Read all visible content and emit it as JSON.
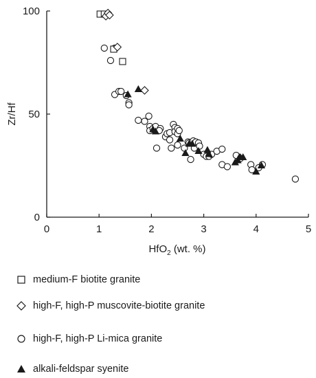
{
  "chart_data": {
    "type": "scatter",
    "title": "",
    "xlabel_main": "HfO",
    "xlabel_sub": "2",
    "xlabel_tail": " (wt. %)",
    "ylabel": "Zr/Hf",
    "xlim": [
      0,
      5
    ],
    "ylim": [
      0,
      100
    ],
    "xticks": [
      "0",
      "1",
      "2",
      "3",
      "4",
      "5"
    ],
    "yticks": [
      "0",
      "50",
      "100"
    ],
    "grid": false,
    "legend_position": "below",
    "series": [
      {
        "name": "medium-F biotite granite",
        "marker": "square-open",
        "points": [
          [
            1.02,
            98.5
          ],
          [
            1.1,
            98.5
          ],
          [
            1.28,
            81.5
          ],
          [
            1.45,
            75.5
          ]
        ]
      },
      {
        "name": "high-F, high-P muscovite-biotite granite",
        "marker": "diamond-open",
        "points": [
          [
            1.13,
            97.5
          ],
          [
            1.17,
            99
          ],
          [
            1.2,
            98
          ],
          [
            1.35,
            82.5
          ],
          [
            1.87,
            61.5
          ]
        ]
      },
      {
        "name": "high-F, high-P Li-mica granite",
        "marker": "circle-open",
        "points": [
          [
            1.1,
            82
          ],
          [
            1.22,
            76
          ],
          [
            1.3,
            82
          ],
          [
            1.3,
            59.5
          ],
          [
            1.38,
            61
          ],
          [
            1.42,
            61
          ],
          [
            1.52,
            59
          ],
          [
            1.57,
            55.5
          ],
          [
            1.57,
            54.5
          ],
          [
            1.75,
            47
          ],
          [
            1.87,
            46.5
          ],
          [
            1.95,
            49
          ],
          [
            1.97,
            44
          ],
          [
            1.97,
            42
          ],
          [
            2.03,
            43
          ],
          [
            2.08,
            44
          ],
          [
            2.1,
            33.5
          ],
          [
            2.17,
            43
          ],
          [
            2.15,
            42
          ],
          [
            2.27,
            39
          ],
          [
            2.3,
            40.5
          ],
          [
            2.35,
            41
          ],
          [
            2.35,
            37.5
          ],
          [
            2.38,
            33.5
          ],
          [
            2.42,
            45
          ],
          [
            2.45,
            43.5
          ],
          [
            2.45,
            41.5
          ],
          [
            2.5,
            43
          ],
          [
            2.5,
            40.5
          ],
          [
            2.5,
            35
          ],
          [
            2.53,
            42
          ],
          [
            2.63,
            33.5
          ],
          [
            2.7,
            36.5
          ],
          [
            2.72,
            36
          ],
          [
            2.75,
            28
          ],
          [
            2.8,
            37
          ],
          [
            2.82,
            33.5
          ],
          [
            2.85,
            36.5
          ],
          [
            2.9,
            36
          ],
          [
            2.92,
            34.5
          ],
          [
            3.0,
            30.5
          ],
          [
            3.05,
            29.5
          ],
          [
            3.1,
            29.5
          ],
          [
            3.15,
            30.5
          ],
          [
            3.25,
            32
          ],
          [
            3.35,
            33
          ],
          [
            3.35,
            25.5
          ],
          [
            3.45,
            24.5
          ],
          [
            3.62,
            30
          ],
          [
            3.7,
            28.5
          ],
          [
            3.9,
            25.5
          ],
          [
            3.92,
            23
          ],
          [
            4.05,
            24
          ],
          [
            4.12,
            25.5
          ],
          [
            4.75,
            18.5
          ]
        ]
      },
      {
        "name": "alkali-feldspar syenite",
        "marker": "triangle-filled",
        "points": [
          [
            1.55,
            59.5
          ],
          [
            1.75,
            62
          ],
          [
            2.03,
            42.5
          ],
          [
            2.08,
            41.5
          ],
          [
            2.55,
            38
          ],
          [
            2.65,
            31
          ],
          [
            2.72,
            35.5
          ],
          [
            2.78,
            35.5
          ],
          [
            2.9,
            32
          ],
          [
            3.07,
            32.5
          ],
          [
            3.1,
            30.5
          ],
          [
            3.6,
            26.5
          ],
          [
            3.65,
            27.5
          ],
          [
            3.68,
            29
          ],
          [
            3.7,
            29
          ],
          [
            3.75,
            29
          ],
          [
            4.0,
            22
          ],
          [
            4.1,
            25
          ]
        ]
      }
    ]
  },
  "colors": {
    "ink": "#1a1a1a",
    "background": "#ffffff"
  }
}
